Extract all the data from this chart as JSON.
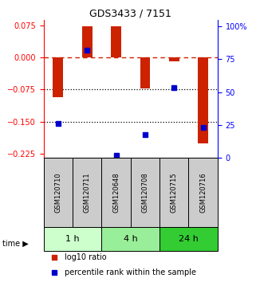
{
  "title": "GDS3433 / 7151",
  "samples": [
    "GSM120710",
    "GSM120711",
    "GSM120648",
    "GSM120708",
    "GSM120715",
    "GSM120716"
  ],
  "log10_ratios": [
    -0.092,
    0.072,
    0.072,
    -0.072,
    -0.01,
    -0.2
  ],
  "percentile_ranks": [
    25,
    78,
    2,
    17,
    51,
    22
  ],
  "ylim_left": [
    -0.235,
    0.088
  ],
  "ylim_right": [
    0,
    105
  ],
  "yticks_left": [
    0.075,
    0,
    -0.075,
    -0.15,
    -0.225
  ],
  "yticks_right": [
    100,
    75,
    50,
    25,
    0
  ],
  "time_groups": [
    {
      "label": "1 h",
      "indices": [
        0,
        1
      ],
      "color": "#ccffcc"
    },
    {
      "label": "4 h",
      "indices": [
        2,
        3
      ],
      "color": "#99ee99"
    },
    {
      "label": "24 h",
      "indices": [
        4,
        5
      ],
      "color": "#33cc33"
    }
  ],
  "bar_color": "#cc2200",
  "marker_color": "#0000cc",
  "dashed_line_color": "#cc2200",
  "dotted_line_color": "#000000",
  "sample_box_color": "#cccccc",
  "background_color": "#ffffff",
  "legend_items": [
    {
      "label": "log10 ratio",
      "color": "#cc2200"
    },
    {
      "label": "percentile rank within the sample",
      "color": "#0000cc"
    }
  ],
  "bar_width": 0.35,
  "title_fontsize": 9,
  "tick_fontsize": 7,
  "sample_fontsize": 6,
  "time_fontsize": 8,
  "legend_fontsize": 7
}
